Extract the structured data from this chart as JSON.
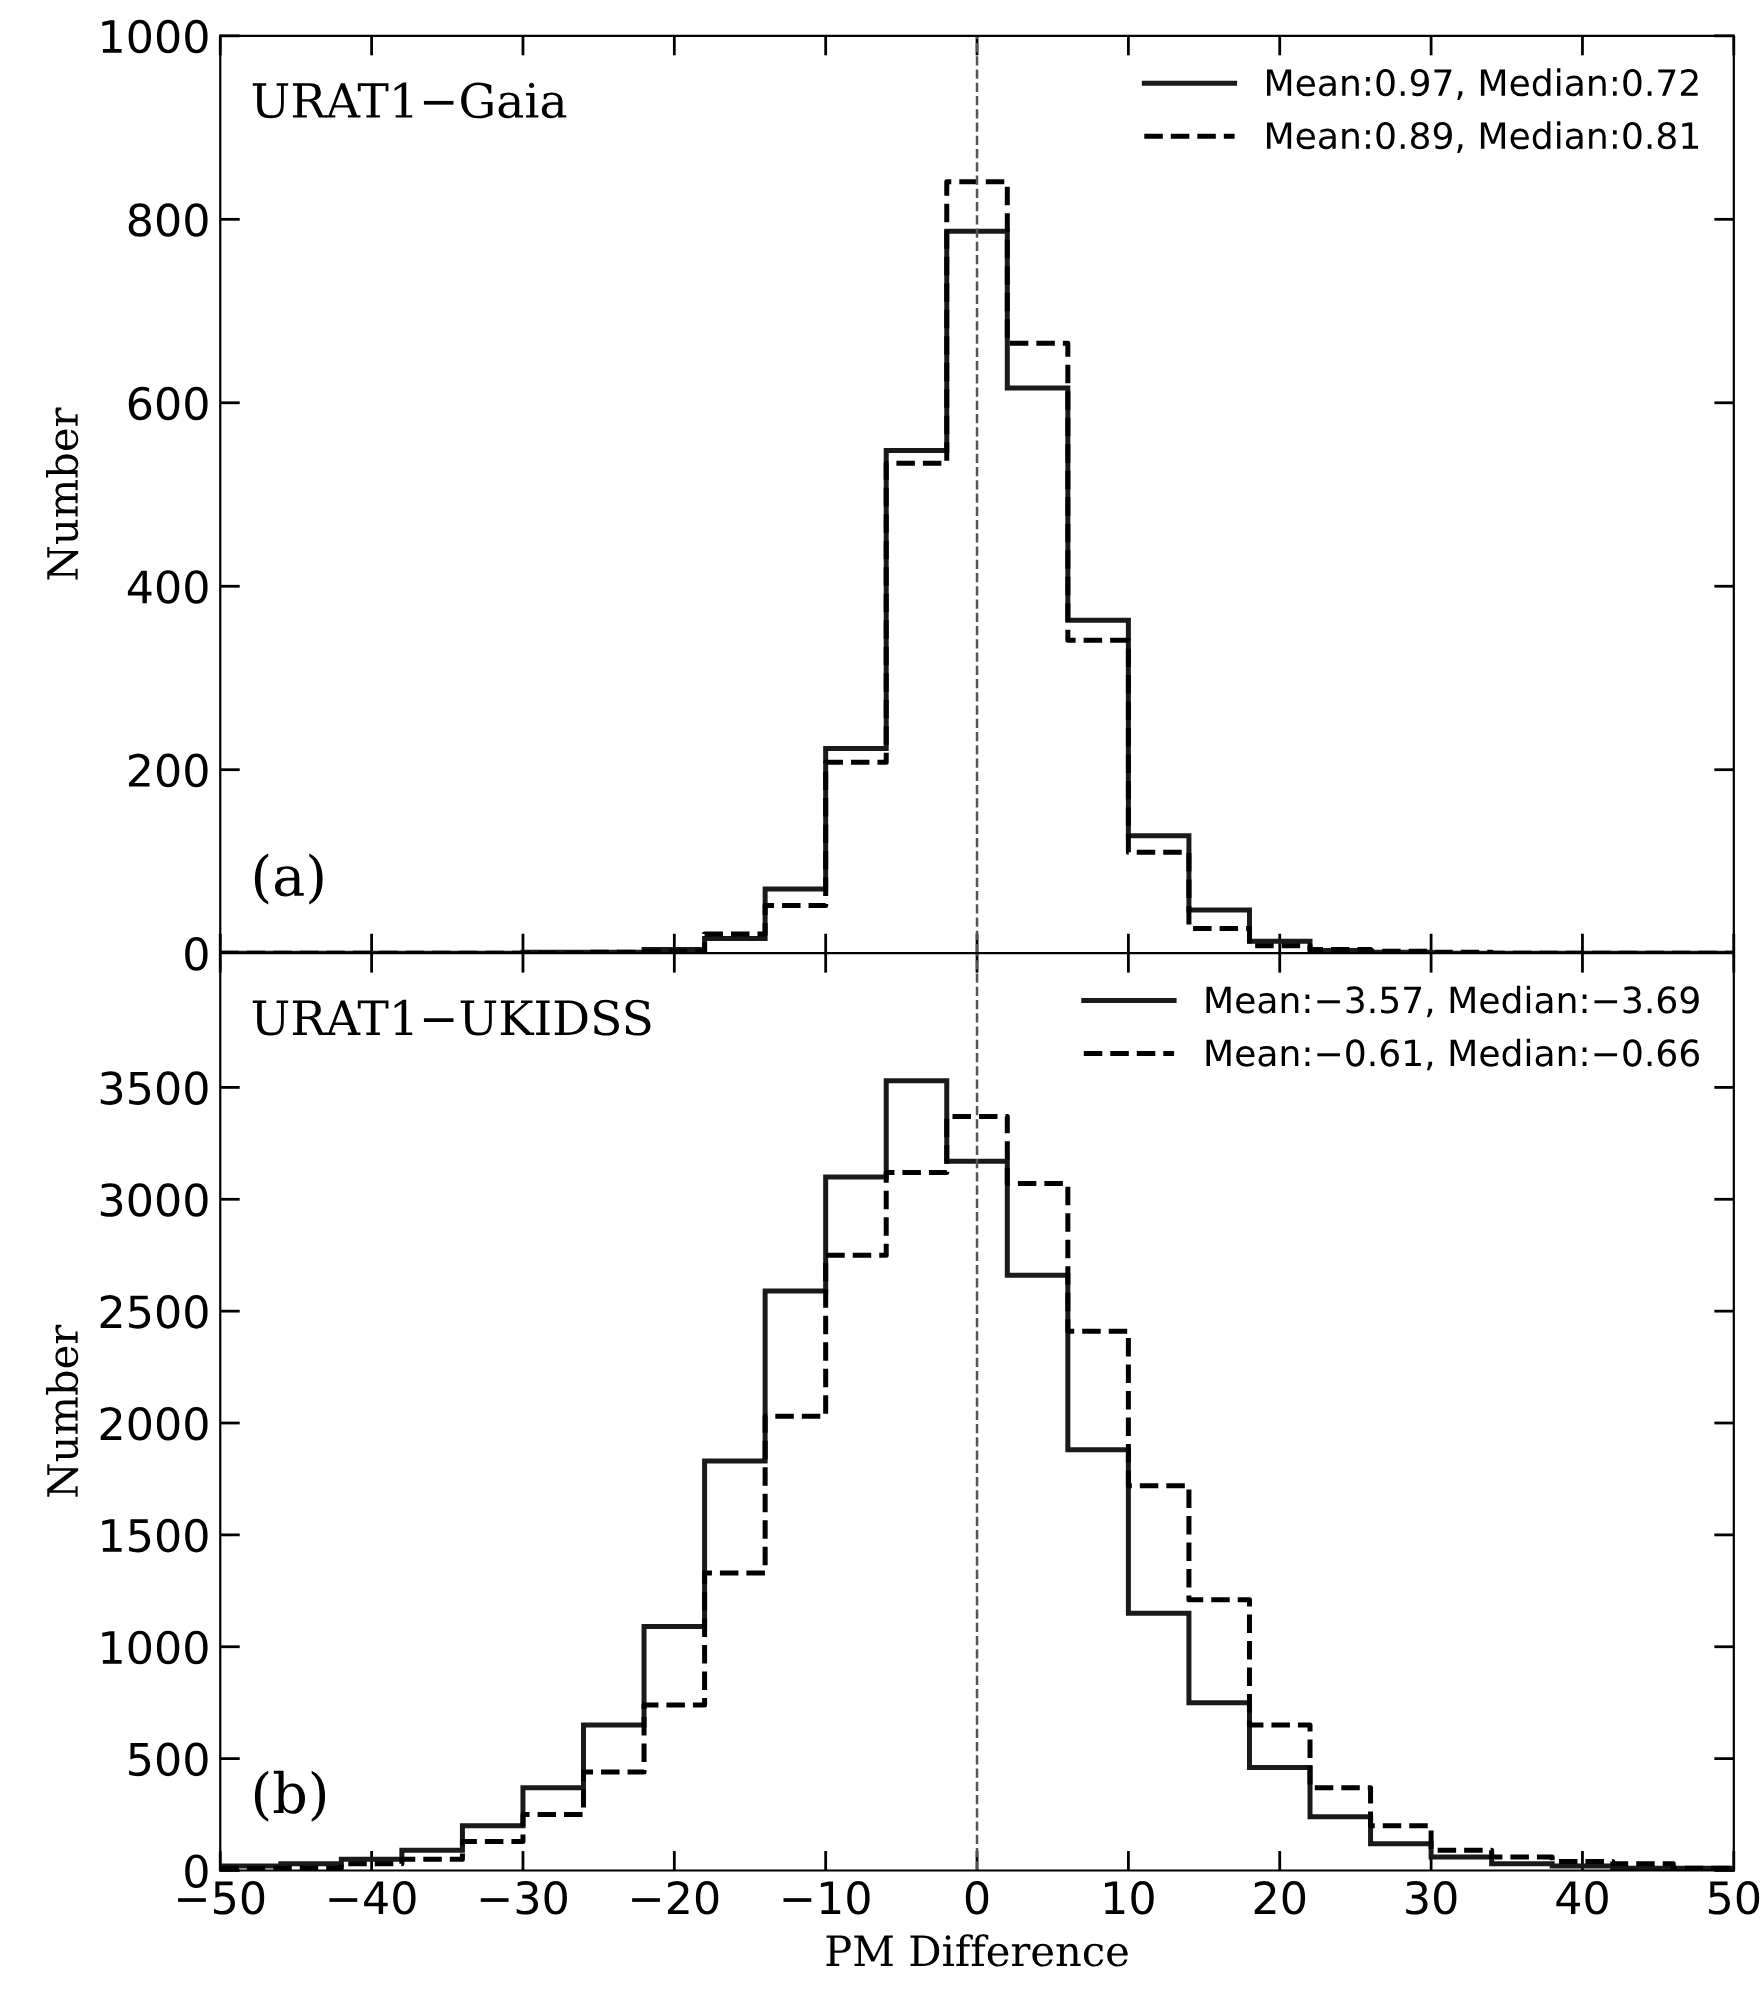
{
  "chart_data": [
    {
      "type": "histogram",
      "title": "URAT1−Gaia",
      "ylabel": "Number",
      "annotations": [
        "(a)"
      ],
      "bins": [
        -50,
        -46,
        -42,
        -38,
        -34,
        -30,
        -26,
        -22,
        -18,
        -14,
        -10,
        -6,
        -2,
        2,
        6,
        10,
        14,
        18,
        22,
        26,
        30,
        34,
        38,
        42,
        46,
        50
      ],
      "series": [
        {
          "name": "Mean:0.97, Median:0.72",
          "color": "#1a1a1a",
          "line_style": "solid",
          "values": [
            0,
            0,
            0,
            0,
            0,
            1,
            1,
            4,
            16,
            70,
            223,
            548,
            787,
            616,
            363,
            128,
            47,
            13,
            3,
            1,
            0,
            0,
            0,
            0,
            0
          ]
        },
        {
          "name": "Mean:0.89, Median:0.81",
          "color": "#000000",
          "line_style": "dashed",
          "values": [
            0,
            0,
            0,
            0,
            0,
            0,
            1,
            2,
            21,
            52,
            208,
            534,
            841,
            665,
            341,
            110,
            27,
            8,
            4,
            2,
            1,
            0,
            0,
            0,
            0
          ]
        }
      ],
      "xlim": [
        -50,
        50
      ],
      "xticks": [
        -50,
        -40,
        -30,
        -20,
        -10,
        0,
        10,
        20,
        30,
        40,
        50
      ],
      "ylim": [
        0,
        1000
      ],
      "yticks": [
        0,
        200,
        400,
        600,
        800,
        1000
      ],
      "tick_labels": "y",
      "legend": "top right",
      "grid": false,
      "ref_lines": [
        {
          "axis": "x",
          "value": 0,
          "color": "#555555",
          "line_style": "dashed"
        }
      ]
    },
    {
      "type": "histogram",
      "title": "URAT1−UKIDSS",
      "xlabel": "PM Difference",
      "ylabel": "Number",
      "annotations": [
        "(b)"
      ],
      "bins": [
        -50,
        -46,
        -42,
        -38,
        -34,
        -30,
        -26,
        -22,
        -18,
        -14,
        -10,
        -6,
        -2,
        2,
        6,
        10,
        14,
        18,
        22,
        26,
        30,
        34,
        38,
        42,
        46,
        50
      ],
      "series": [
        {
          "name": "Mean:−3.57, Median:−3.69",
          "color": "#1a1a1a",
          "line_style": "solid",
          "values": [
            20,
            30,
            50,
            90,
            200,
            370,
            650,
            1090,
            1830,
            2590,
            3100,
            3530,
            3170,
            2660,
            1880,
            1150,
            750,
            460,
            240,
            120,
            60,
            30,
            20,
            10,
            10
          ]
        },
        {
          "name": "Mean:−0.61, Median:−0.66",
          "color": "#000000",
          "line_style": "dashed",
          "values": [
            10,
            10,
            30,
            50,
            130,
            250,
            440,
            740,
            1330,
            2030,
            2750,
            3120,
            3370,
            3070,
            2410,
            1720,
            1210,
            650,
            370,
            200,
            90,
            60,
            40,
            30,
            10
          ]
        }
      ],
      "xlim": [
        -50,
        50
      ],
      "xticks": [
        -50,
        -40,
        -30,
        -20,
        -10,
        0,
        10,
        20,
        30,
        40,
        50
      ],
      "ylim": [
        0,
        4100
      ],
      "yticks": [
        0,
        500,
        1000,
        1500,
        2000,
        2500,
        3000,
        3500
      ],
      "legend": "top right",
      "grid": false,
      "ref_lines": [
        {
          "axis": "x",
          "value": 0,
          "color": "#555555",
          "line_style": "dashed"
        }
      ]
    }
  ]
}
